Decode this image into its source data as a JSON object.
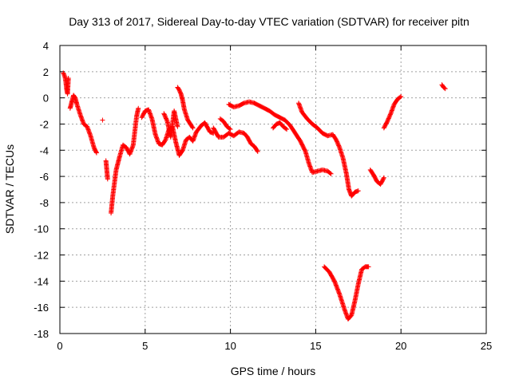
{
  "chart_data": {
    "type": "scatter",
    "title": "Day 313 of 2017, Sidereal Day-to-day VTEC variation (SDTVAR) for receiver pitn",
    "xlabel": "GPS time / hours",
    "ylabel": "SDTVAR / TECUs",
    "xlim": [
      0,
      25
    ],
    "ylim": [
      -18,
      4
    ],
    "xticks": [
      0,
      5,
      10,
      15,
      20,
      25
    ],
    "yticks": [
      4,
      2,
      0,
      -2,
      -4,
      -6,
      -8,
      -10,
      -12,
      -14,
      -16,
      -18
    ],
    "grid": true,
    "marker": "+",
    "color": "#ff0000",
    "series": [
      {
        "name": "SDTVAR",
        "segments": [
          [
            [
              0.2,
              1.9
            ],
            [
              0.3,
              1.6
            ],
            [
              0.35,
              1.2
            ],
            [
              0.4,
              0.6
            ],
            [
              0.45,
              0.3
            ],
            [
              0.5,
              1.5
            ]
          ],
          [
            [
              0.6,
              -0.8
            ],
            [
              0.7,
              -0.3
            ],
            [
              0.8,
              0.2
            ],
            [
              0.9,
              0.0
            ],
            [
              1.0,
              -0.5
            ],
            [
              1.2,
              -1.3
            ],
            [
              1.4,
              -2.0
            ],
            [
              1.6,
              -2.2
            ],
            [
              1.8,
              -2.9
            ],
            [
              2.0,
              -3.8
            ],
            [
              2.15,
              -4.2
            ]
          ],
          [
            [
              2.5,
              -1.7
            ]
          ],
          [
            [
              2.7,
              -4.8
            ],
            [
              2.75,
              -5.5
            ],
            [
              2.8,
              -6.2
            ]
          ],
          [
            [
              3.0,
              -8.8
            ],
            [
              3.1,
              -7.5
            ],
            [
              3.2,
              -6.5
            ],
            [
              3.3,
              -5.5
            ],
            [
              3.5,
              -4.5
            ],
            [
              3.7,
              -3.6
            ],
            [
              3.9,
              -3.8
            ],
            [
              4.1,
              -4.3
            ],
            [
              4.3,
              -3.6
            ],
            [
              4.4,
              -2.5
            ],
            [
              4.5,
              -1.4
            ],
            [
              4.6,
              -0.8
            ]
          ],
          [
            [
              4.8,
              -1.5
            ],
            [
              5.0,
              -1.0
            ],
            [
              5.2,
              -0.9
            ],
            [
              5.4,
              -1.6
            ],
            [
              5.6,
              -2.8
            ],
            [
              5.8,
              -3.5
            ],
            [
              6.0,
              -3.6
            ],
            [
              6.2,
              -3.2
            ],
            [
              6.4,
              -2.4
            ],
            [
              6.6,
              -2.2
            ],
            [
              6.8,
              -3.4
            ],
            [
              7.0,
              -4.4
            ],
            [
              7.2,
              -4.0
            ],
            [
              7.4,
              -3.2
            ],
            [
              7.6,
              -3.0
            ],
            [
              7.8,
              -3.3
            ],
            [
              8.0,
              -2.6
            ],
            [
              8.3,
              -2.1
            ],
            [
              8.5,
              -1.9
            ],
            [
              8.8,
              -2.6
            ],
            [
              9.0,
              -2.7
            ]
          ],
          [
            [
              6.9,
              0.8
            ],
            [
              7.0,
              0.6
            ],
            [
              7.1,
              0.3
            ],
            [
              7.2,
              -0.2
            ],
            [
              7.3,
              -0.9
            ],
            [
              7.5,
              -1.7
            ],
            [
              7.8,
              -2.3
            ]
          ],
          [
            [
              6.1,
              -1.2
            ],
            [
              6.3,
              -1.8
            ],
            [
              6.5,
              -3.0
            ],
            [
              6.7,
              -1.0
            ],
            [
              6.9,
              -2.2
            ]
          ],
          [
            [
              9.0,
              -2.3
            ],
            [
              9.3,
              -3.0
            ],
            [
              9.6,
              -3.0
            ],
            [
              9.9,
              -2.7
            ],
            [
              10.2,
              -2.9
            ],
            [
              10.5,
              -2.6
            ],
            [
              10.8,
              -2.7
            ],
            [
              11.0,
              -3.0
            ],
            [
              11.2,
              -3.5
            ],
            [
              11.4,
              -3.7
            ],
            [
              11.6,
              -4.1
            ]
          ],
          [
            [
              9.4,
              -1.6
            ],
            [
              9.6,
              -1.8
            ],
            [
              9.8,
              -2.2
            ],
            [
              10.0,
              -2.4
            ]
          ],
          [
            [
              9.9,
              -0.5
            ],
            [
              10.2,
              -0.7
            ],
            [
              10.5,
              -0.6
            ],
            [
              10.8,
              -0.4
            ],
            [
              11.1,
              -0.3
            ],
            [
              11.4,
              -0.4
            ],
            [
              11.7,
              -0.6
            ],
            [
              12.0,
              -0.8
            ],
            [
              12.3,
              -1.0
            ],
            [
              12.6,
              -1.3
            ],
            [
              12.9,
              -1.5
            ],
            [
              13.2,
              -1.7
            ],
            [
              13.5,
              -2.1
            ],
            [
              13.8,
              -2.7
            ],
            [
              14.1,
              -3.3
            ],
            [
              14.4,
              -4.1
            ],
            [
              14.6,
              -5.0
            ],
            [
              14.8,
              -5.7
            ],
            [
              15.1,
              -5.6
            ],
            [
              15.4,
              -5.5
            ],
            [
              15.7,
              -5.6
            ],
            [
              15.9,
              -5.8
            ]
          ],
          [
            [
              12.5,
              -2.3
            ],
            [
              12.7,
              -2.0
            ],
            [
              12.9,
              -1.9
            ],
            [
              13.1,
              -2.2
            ],
            [
              13.3,
              -2.4
            ]
          ],
          [
            [
              14.0,
              -0.4
            ],
            [
              14.2,
              -1.1
            ],
            [
              14.5,
              -1.6
            ],
            [
              14.8,
              -2.0
            ],
            [
              15.1,
              -2.3
            ],
            [
              15.4,
              -2.7
            ],
            [
              15.7,
              -2.9
            ],
            [
              16.0,
              -2.8
            ],
            [
              16.2,
              -3.2
            ],
            [
              16.4,
              -3.8
            ],
            [
              16.6,
              -4.6
            ],
            [
              16.8,
              -5.8
            ],
            [
              16.95,
              -7.0
            ],
            [
              17.1,
              -7.5
            ],
            [
              17.3,
              -7.2
            ],
            [
              17.5,
              -7.1
            ]
          ],
          [
            [
              15.5,
              -12.9
            ],
            [
              15.8,
              -13.3
            ],
            [
              16.1,
              -14.0
            ],
            [
              16.4,
              -15.0
            ],
            [
              16.7,
              -16.2
            ],
            [
              16.9,
              -16.9
            ],
            [
              17.1,
              -16.6
            ],
            [
              17.3,
              -15.5
            ],
            [
              17.5,
              -14.2
            ],
            [
              17.7,
              -13.1
            ],
            [
              17.9,
              -12.9
            ],
            [
              18.1,
              -12.9
            ]
          ],
          [
            [
              18.2,
              -5.5
            ],
            [
              18.4,
              -5.9
            ],
            [
              18.6,
              -6.4
            ],
            [
              18.8,
              -6.6
            ],
            [
              19.0,
              -6.1
            ]
          ],
          [
            [
              19.0,
              -2.3
            ],
            [
              19.2,
              -1.8
            ],
            [
              19.4,
              -1.2
            ],
            [
              19.6,
              -0.5
            ],
            [
              19.8,
              -0.1
            ],
            [
              20.0,
              0.1
            ]
          ],
          [
            [
              22.4,
              1.0
            ],
            [
              22.5,
              0.8
            ],
            [
              22.6,
              0.7
            ]
          ]
        ]
      }
    ]
  }
}
